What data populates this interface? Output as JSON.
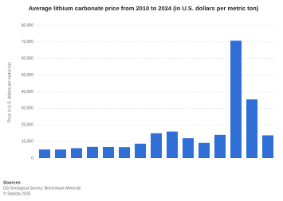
{
  "chart_data": {
    "type": "bar",
    "title": "Average lithium carbonate price from 2010 to 2024 (in U.S. dollars per metric ton)",
    "y_label": "Price in U.S. dollars per metric ton",
    "categories": [
      null,
      null,
      null,
      null,
      null,
      null,
      null,
      null,
      null,
      null,
      null,
      null,
      null,
      null,
      null
    ],
    "values": [
      5200,
      5200,
      6000,
      6800,
      6700,
      6600,
      8700,
      15000,
      16000,
      12000,
      9200,
      14000,
      70800,
      35400,
      13700
    ],
    "color": "#2f6fd6",
    "ylim": [
      0,
      80000
    ],
    "yticks": [
      0,
      {
        "value": 10000,
        "label": "10,000"
      },
      {
        "value": 20000,
        "label": "20,000"
      },
      {
        "value": 30000,
        "label": "30,000"
      },
      {
        "value": 40000,
        "label": "40,000"
      },
      {
        "value": 50000,
        "label": "50,000"
      },
      {
        "value": 60000,
        "label": "60,000"
      },
      {
        "value": 70000,
        "label": "70,000"
      },
      {
        "value": 80000,
        "label": "80,000"
      }
    ],
    "grid": true,
    "source": {
      "heading": "Sources",
      "lines": [
        "US Geological Survey; Benchmark Minerals",
        "© Statista 2025"
      ]
    }
  }
}
